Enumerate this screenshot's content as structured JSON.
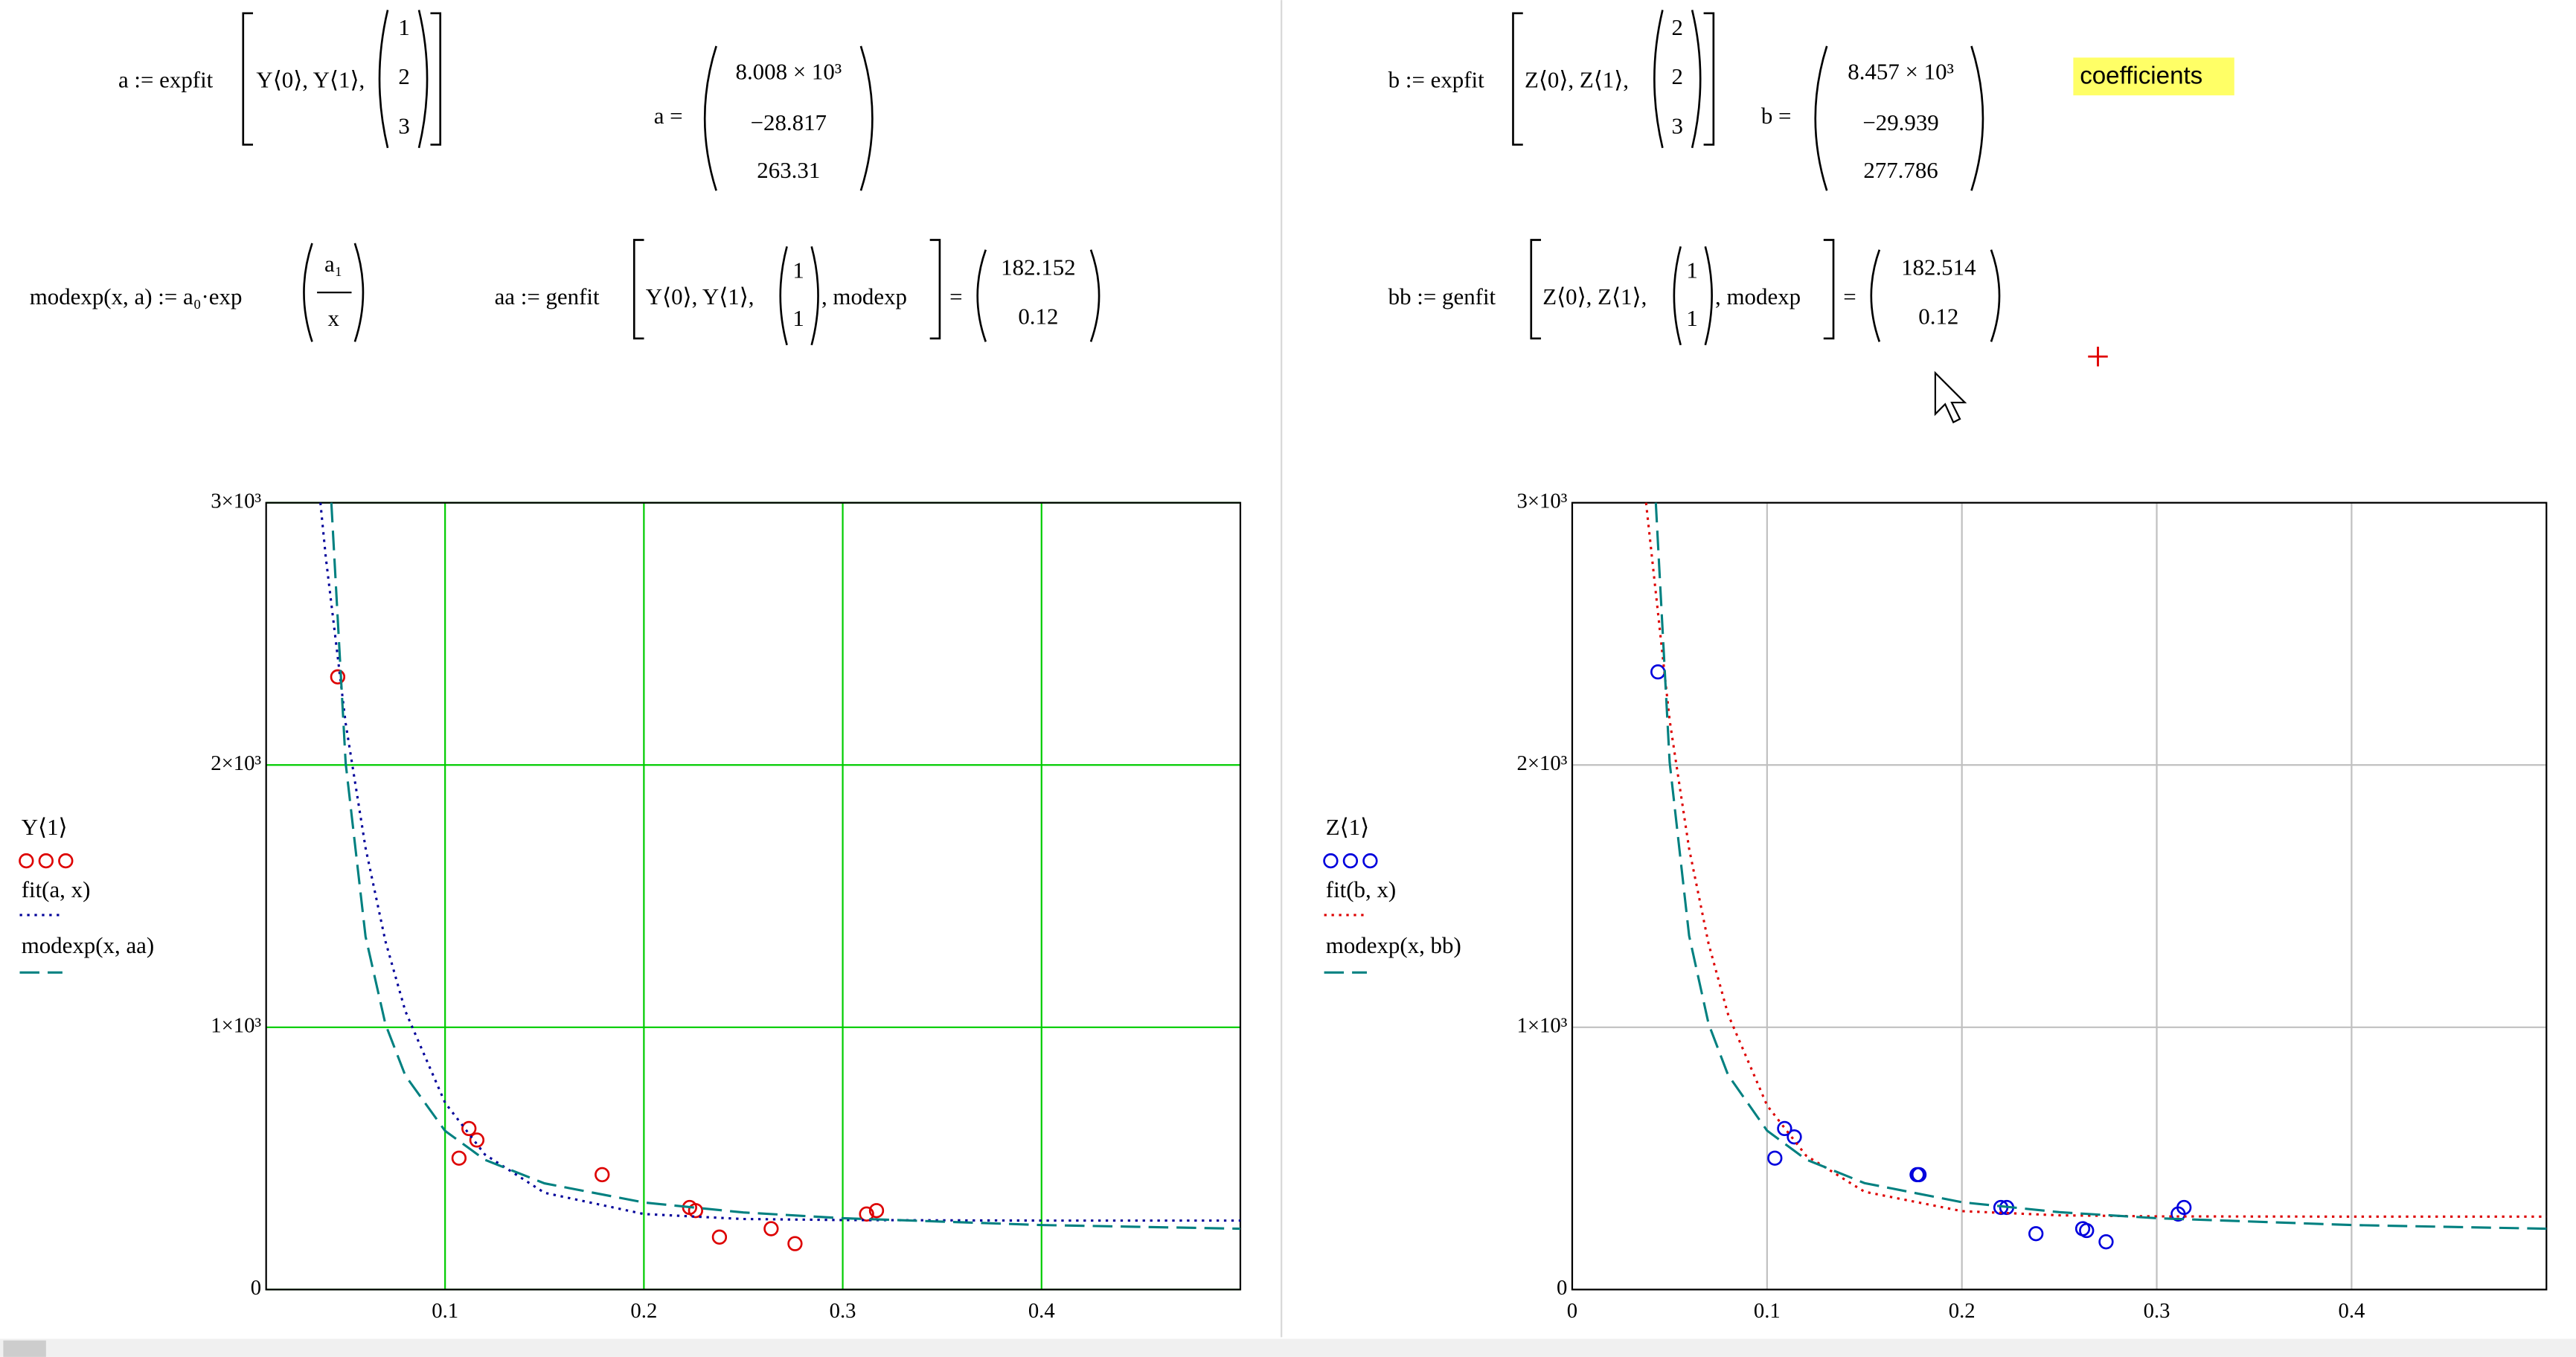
{
  "worksheet": {
    "a_def": {
      "lhs": "a := expfit",
      "args": "Y⟨0⟩, Y⟨1⟩,",
      "guess": [
        "1",
        "2",
        "3"
      ]
    },
    "a_val": {
      "lhs": "a =",
      "entries": [
        "8.008 × 10³",
        "−28.817",
        "263.31"
      ]
    },
    "modexp_def": {
      "lhs": "modexp(x, a) := a₀·exp",
      "num": "a₁",
      "den": "x"
    },
    "aa_def": {
      "lhs": "aa := genfit",
      "args": "Y⟨0⟩, Y⟨1⟩,",
      "guess": [
        "1",
        "1"
      ],
      "tail": ", modexp",
      "eq": "=",
      "result": [
        "182.152",
        "0.12"
      ]
    },
    "b_def": {
      "lhs": "b := expfit",
      "args": "Z⟨0⟩, Z⟨1⟩,",
      "guess": [
        "2",
        "2",
        "3"
      ]
    },
    "b_val": {
      "lhs": "b =",
      "entries": [
        "8.457 × 10³",
        "−29.939",
        "277.786"
      ]
    },
    "note": "coefficients",
    "bb_def": {
      "lhs": "bb := genfit",
      "args": "Z⟨0⟩, Z⟨1⟩,",
      "guess": [
        "1",
        "1"
      ],
      "tail": ", modexp",
      "eq": "=",
      "result": [
        "182.514",
        "0.12"
      ]
    }
  },
  "chart_data": [
    {
      "type": "scatter",
      "grid": true,
      "grid_color": "#00cc00",
      "xlim": [
        0.01,
        0.5
      ],
      "xticks": [
        0.1,
        0.2,
        0.3,
        0.4
      ],
      "ylim": [
        0,
        3000
      ],
      "yticks": [
        0,
        {
          "value": 1000,
          "label": "1×10³"
        },
        {
          "value": 2000,
          "label": "2×10³"
        },
        {
          "value": 3000,
          "label": "3×10³"
        }
      ],
      "series": [
        {
          "name": "Y⟨1⟩",
          "color": "#dd0000",
          "style": "circles",
          "x": [
            0.046,
            0.107,
            0.112,
            0.116,
            0.179,
            0.223,
            0.226,
            0.238,
            0.264,
            0.276,
            0.312,
            0.317
          ],
          "values": [
            2336,
            501,
            614,
            570,
            438,
            313,
            301,
            200,
            232,
            175,
            288,
            301
          ]
        },
        {
          "name": "fit(a, x)",
          "color": "#000099",
          "style": "dotted",
          "x": [
            0.0373,
            0.04,
            0.05,
            0.06,
            0.07,
            0.08,
            0.1,
            0.12,
            0.15,
            0.2,
            0.25,
            0.3,
            0.4,
            0.5
          ],
          "values": [
            3000,
            2792,
            2159,
            1684,
            1328,
            1062,
            712,
            515,
            369,
            288,
            269,
            265,
            263,
            263
          ]
        },
        {
          "name": "modexp(x, aa)",
          "color": "#008080",
          "style": "dashed",
          "x": [
            0.0428,
            0.05,
            0.06,
            0.07,
            0.08,
            0.1,
            0.12,
            0.15,
            0.2,
            0.25,
            0.3,
            0.4,
            0.5
          ],
          "values": [
            3000,
            2007,
            1346,
            1012,
            816,
            605,
            495,
            405,
            332,
            294,
            272,
            246,
            232
          ]
        }
      ]
    },
    {
      "type": "scatter",
      "grid": true,
      "grid_color": "#c0c0c0",
      "xlim": [
        0,
        0.5
      ],
      "xticks": [
        0,
        0.1,
        0.2,
        0.3,
        0.4
      ],
      "ylim": [
        0,
        3000
      ],
      "yticks": [
        0,
        {
          "value": 1000,
          "label": "1×10³"
        },
        {
          "value": 2000,
          "label": "2×10³"
        },
        {
          "value": 3000,
          "label": "3×10³"
        }
      ],
      "series": [
        {
          "name": "Z⟨1⟩",
          "color": "#0000dd",
          "style": "circles",
          "x": [
            0.044,
            0.104,
            0.109,
            0.114,
            0.177,
            0.178,
            0.22,
            0.223,
            0.238,
            0.262,
            0.264,
            0.274,
            0.311,
            0.314
          ],
          "values": [
            2355,
            501,
            614,
            582,
            438,
            438,
            313,
            313,
            213,
            232,
            225,
            182,
            288,
            313
          ]
        },
        {
          "name": "fit(b, x)",
          "color": "#dd0000",
          "style": "dotted",
          "x": [
            0.0379,
            0.05,
            0.06,
            0.07,
            0.08,
            0.1,
            0.12,
            0.15,
            0.2,
            0.25,
            0.3,
            0.4,
            0.5
          ],
          "values": [
            3000,
            2171,
            1681,
            1318,
            1049,
            702,
            511,
            373,
            299,
            283,
            279,
            278,
            278
          ]
        },
        {
          "name": "modexp(x, bb)",
          "color": "#008080",
          "style": "dashed",
          "x": [
            0.0429,
            0.05,
            0.06,
            0.07,
            0.08,
            0.1,
            0.12,
            0.15,
            0.2,
            0.25,
            0.3,
            0.4,
            0.5
          ],
          "values": [
            3000,
            2011,
            1349,
            1013,
            818,
            606,
            496,
            406,
            333,
            295,
            272,
            246,
            232
          ]
        }
      ]
    }
  ]
}
